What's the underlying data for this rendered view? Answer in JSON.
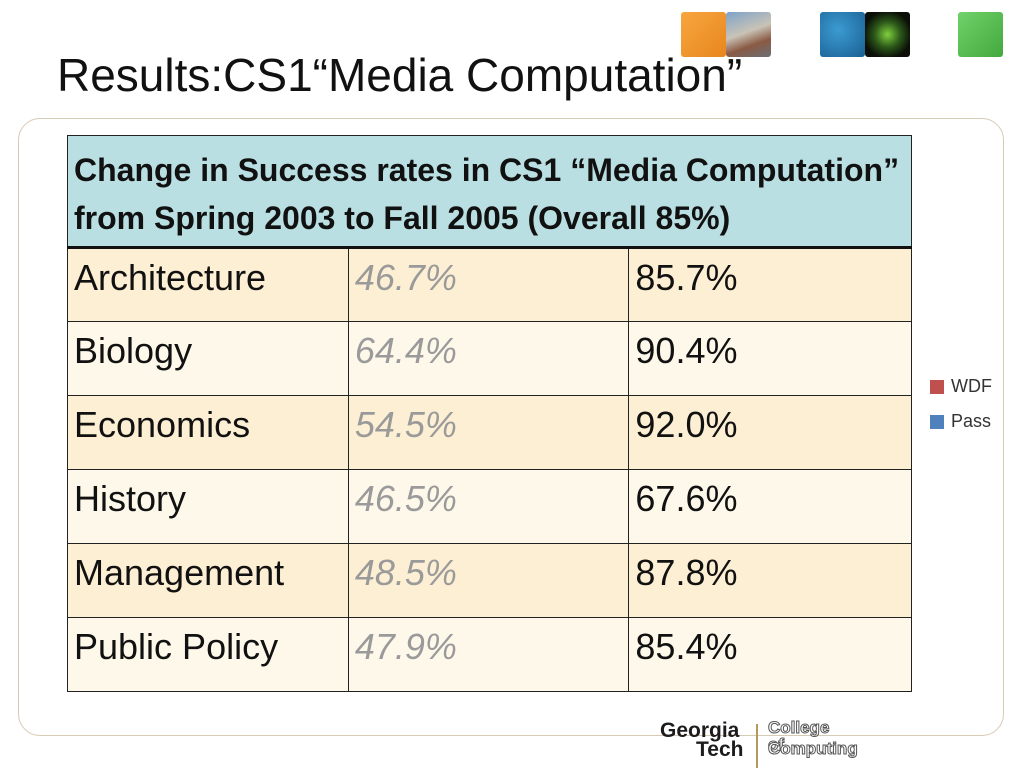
{
  "slide": {
    "title": "Results:CS1“Media Computation”"
  },
  "table": {
    "header": "Change in Success rates in CS1 “Media Computation” from Spring 2003 to Fall 2005 (Overall 85%)",
    "rows": [
      {
        "major": "Architecture",
        "before": "46.7%",
        "after": "85.7%"
      },
      {
        "major": "Biology",
        "before": "64.4%",
        "after": "90.4%"
      },
      {
        "major": "Economics",
        "before": "54.5%",
        "after": "92.0%"
      },
      {
        "major": "History",
        "before": "46.5%",
        "after": "67.6%"
      },
      {
        "major": "Management",
        "before": "48.5%",
        "after": "87.8%"
      },
      {
        "major": "Public Policy",
        "before": "47.9%",
        "after": "85.4%"
      }
    ]
  },
  "legend": {
    "wdf": {
      "label": "WDF",
      "color": "#c0504d"
    },
    "pass": {
      "label": "Pass",
      "color": "#4f81bd"
    }
  },
  "branding": {
    "georgia": "Georgia",
    "tech": "Tech",
    "college_line1": "College of",
    "college_line2": "Computing"
  }
}
